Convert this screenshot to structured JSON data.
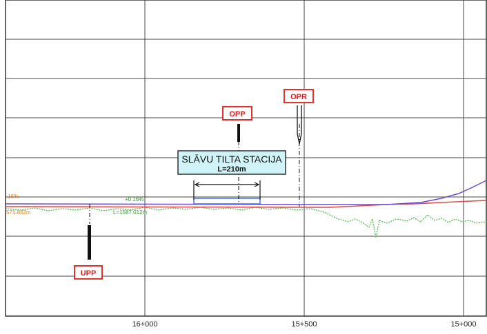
{
  "labels": {
    "upp": "UPP",
    "opp": "OPP",
    "opr": "OPR",
    "bridge_title": "SLĀVU TILTA STACIJA",
    "bridge_length": "L=210m",
    "grade_left": ".16%",
    "grade_mid": "+0.16%",
    "elevation_left": "571.842m",
    "length_label": "L=1587.012m"
  },
  "stations": [
    "16+000",
    "15+500",
    "15+000"
  ],
  "colors": {
    "grid": "#333333",
    "tag_text": "#e21b1b",
    "tag_border": "#e21b1b",
    "bridge_box_fill": "#cff3f7",
    "design_line_blue": "#6a4bd6",
    "design_line_red": "#d94a4a",
    "ground_line": "#3db33d",
    "bridge_outline": "#3355ee"
  }
}
